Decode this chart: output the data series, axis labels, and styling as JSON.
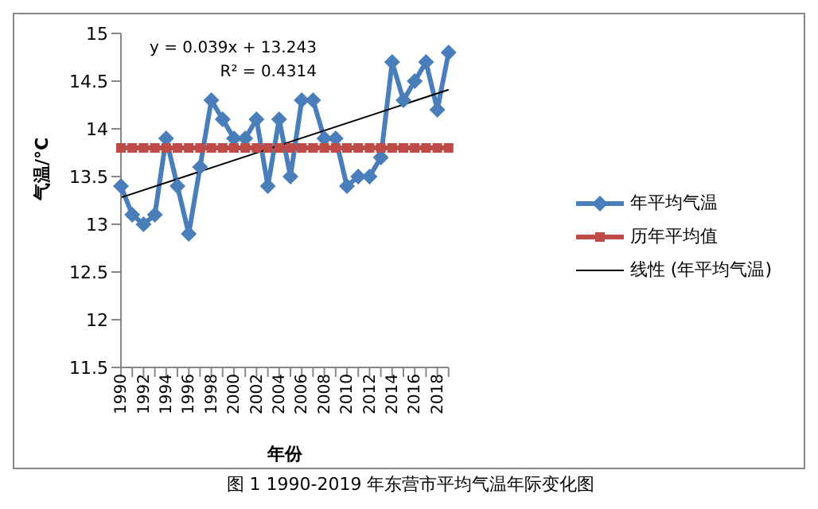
{
  "chart_data": {
    "type": "line",
    "xlabel": "年份",
    "ylabel": "气温/°C",
    "categories": [
      "1990",
      null,
      "1992",
      null,
      "1994",
      null,
      "1996",
      null,
      "1998",
      null,
      "2000",
      null,
      "2002",
      null,
      "2004",
      null,
      "2006",
      null,
      "2008",
      null,
      "2010",
      null,
      "2012",
      null,
      "2014",
      null,
      "2016",
      null,
      "2018",
      null
    ],
    "series": [
      {
        "name": "年平均气温",
        "color": "#4a7ebb",
        "marker": "diamond",
        "values": [
          13.4,
          13.1,
          13.0,
          13.1,
          13.9,
          13.4,
          12.9,
          13.6,
          14.3,
          14.1,
          13.9,
          13.9,
          14.1,
          13.4,
          14.1,
          13.5,
          14.3,
          14.3,
          13.9,
          13.9,
          13.4,
          13.5,
          13.5,
          13.7,
          14.7,
          14.3,
          14.5,
          14.7,
          14.2,
          14.8
        ]
      },
      {
        "name": "历年平均值",
        "color": "#be4b48",
        "marker": "square",
        "values": [
          13.8,
          13.8,
          13.8,
          13.8,
          13.8,
          13.8,
          13.8,
          13.8,
          13.8,
          13.8,
          13.8,
          13.8,
          13.8,
          13.8,
          13.8,
          13.8,
          13.8,
          13.8,
          13.8,
          13.8,
          13.8,
          13.8,
          13.8,
          13.8,
          13.8,
          13.8,
          13.8,
          13.8,
          13.8,
          13.8
        ]
      },
      {
        "name": "线性 (年平均气温)",
        "color": "#000000",
        "marker": "none",
        "values": [
          13.28,
          null,
          null,
          null,
          null,
          null,
          null,
          null,
          null,
          null,
          null,
          null,
          null,
          null,
          null,
          null,
          null,
          null,
          null,
          null,
          null,
          null,
          null,
          null,
          null,
          null,
          null,
          null,
          null,
          14.41
        ]
      }
    ],
    "ylim": [
      11.5,
      15
    ],
    "yticks": [
      11.5,
      12,
      12.5,
      13,
      13.5,
      14,
      14.5,
      15
    ],
    "grid": false,
    "legend": "right",
    "annotations": [
      "y = 0.039x + 13.243",
      "R² = 0.4314",
      "图 1 1990-2019 年东营市平均气温年际变化图"
    ]
  }
}
